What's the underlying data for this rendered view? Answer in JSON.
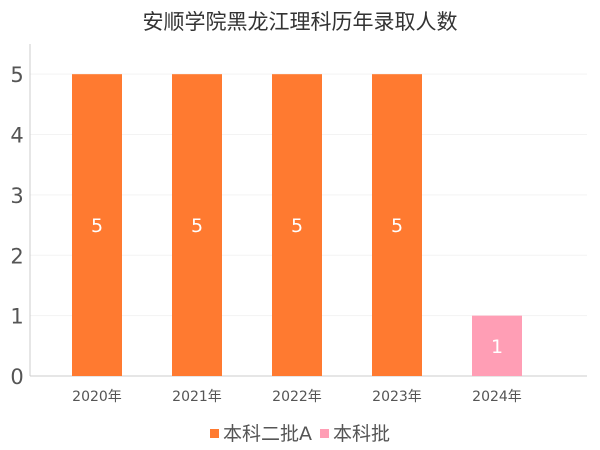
{
  "chart_data": {
    "type": "bar",
    "title": "安顺学院黑龙江理科历年录取人数",
    "categories": [
      "2020年",
      "2021年",
      "2022年",
      "2023年",
      "2024年"
    ],
    "series": [
      {
        "name": "本科二批A",
        "color": "#ff7a30",
        "values": [
          5,
          5,
          5,
          5,
          null
        ]
      },
      {
        "name": "本科批",
        "color": "#ff9eb5",
        "values": [
          null,
          null,
          null,
          null,
          1
        ]
      }
    ],
    "ylim": [
      0,
      5.5
    ],
    "yticks": [
      0,
      1,
      2,
      3,
      4,
      5
    ],
    "grid": true,
    "legend_position": "bottom",
    "data_labels": true
  }
}
